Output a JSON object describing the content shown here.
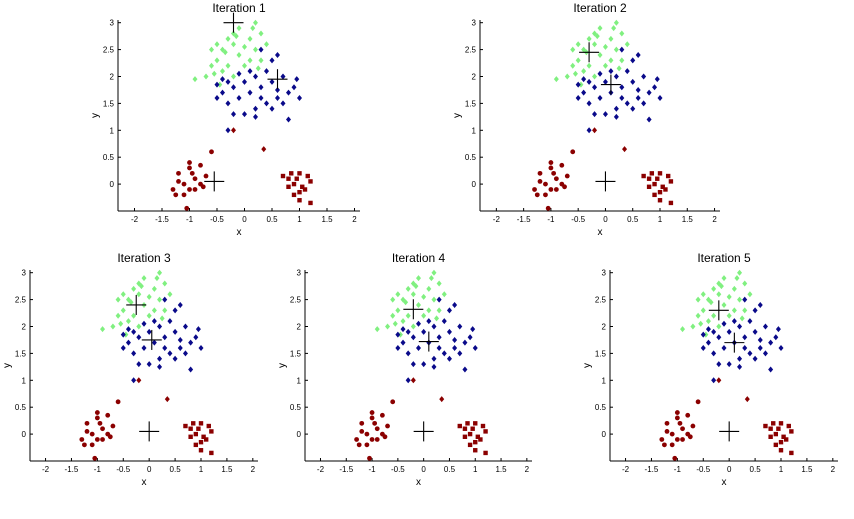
{
  "figure": {
    "description_free": true
  },
  "colors": {
    "cluster_light_green": "#80f080",
    "cluster_dark_blue": "#0a0a8a",
    "cluster_dark_red": "#8b0000",
    "centroid_marker": "#000000",
    "axes": "#000000"
  },
  "chart_data": [
    {
      "type": "scatter",
      "title": "Iteration 1",
      "xlabel": "x",
      "ylabel": "y",
      "xlim": [
        -2.3,
        2.1
      ],
      "ylim": [
        -0.5,
        3.05
      ],
      "xticks": [
        -2,
        -1.5,
        -1,
        -0.5,
        0,
        0.5,
        1,
        1.5,
        2
      ],
      "yticks": [
        0,
        0.5,
        1,
        1.5,
        2,
        2.5,
        3
      ],
      "centroids": [
        {
          "x": -0.2,
          "y": 3.0
        },
        {
          "x": 0.6,
          "y": 1.95
        },
        {
          "x": -0.55,
          "y": 0.05
        }
      ],
      "series_assignment": "iter1"
    },
    {
      "type": "scatter",
      "title": "Iteration 2",
      "xlabel": "x",
      "ylabel": "y",
      "xlim": [
        -2.3,
        2.1
      ],
      "ylim": [
        -0.5,
        3.05
      ],
      "xticks": [
        -2,
        -1.5,
        -1,
        -0.5,
        0,
        0.5,
        1,
        1.5,
        2
      ],
      "yticks": [
        0,
        0.5,
        1,
        1.5,
        2,
        2.5,
        3
      ],
      "centroids": [
        {
          "x": -0.3,
          "y": 2.45
        },
        {
          "x": 0.1,
          "y": 1.85
        },
        {
          "x": 0.0,
          "y": 0.05
        }
      ],
      "series_assignment": "iter2"
    },
    {
      "type": "scatter",
      "title": "Iteration 3",
      "xlabel": "x",
      "ylabel": "y",
      "xlim": [
        -2.3,
        2.1
      ],
      "ylim": [
        -0.5,
        3.05
      ],
      "xticks": [
        -2,
        -1.5,
        -1,
        -0.5,
        0,
        0.5,
        1,
        1.5,
        2
      ],
      "yticks": [
        0,
        0.5,
        1,
        1.5,
        2,
        2.5,
        3
      ],
      "centroids": [
        {
          "x": -0.25,
          "y": 2.4
        },
        {
          "x": 0.05,
          "y": 1.75
        },
        {
          "x": 0.0,
          "y": 0.05
        }
      ],
      "series_assignment": "final"
    },
    {
      "type": "scatter",
      "title": "Iteration 4",
      "xlabel": "x",
      "ylabel": "y",
      "xlim": [
        -2.3,
        2.1
      ],
      "ylim": [
        -0.5,
        3.05
      ],
      "xticks": [
        -2,
        -1.5,
        -1,
        -0.5,
        0,
        0.5,
        1,
        1.5,
        2
      ],
      "yticks": [
        0,
        0.5,
        1,
        1.5,
        2,
        2.5,
        3
      ],
      "centroids": [
        {
          "x": -0.2,
          "y": 2.32
        },
        {
          "x": 0.1,
          "y": 1.72
        },
        {
          "x": 0.0,
          "y": 0.05
        }
      ],
      "series_assignment": "final"
    },
    {
      "type": "scatter",
      "title": "Iteration 5",
      "xlabel": "x",
      "ylabel": "y",
      "xlim": [
        -2.3,
        2.1
      ],
      "ylim": [
        -0.5,
        3.05
      ],
      "xticks": [
        -2,
        -1.5,
        -1,
        -0.5,
        0,
        0.5,
        1,
        1.5,
        2
      ],
      "yticks": [
        0,
        0.5,
        1,
        1.5,
        2,
        2.5,
        3
      ],
      "centroids": [
        {
          "x": -0.2,
          "y": 2.3
        },
        {
          "x": 0.1,
          "y": 1.7
        },
        {
          "x": 0.0,
          "y": 0.05
        }
      ],
      "series_assignment": "final"
    }
  ],
  "points": {
    "light_cluster": [
      [
        -0.4,
        2.5
      ],
      [
        -0.3,
        2.7
      ],
      [
        -0.2,
        2.8
      ],
      [
        -0.1,
        2.9
      ],
      [
        0.2,
        3.0
      ],
      [
        -0.5,
        2.3
      ],
      [
        -0.6,
        2.2
      ],
      [
        -0.4,
        2.1
      ],
      [
        -0.2,
        2.6
      ],
      [
        0.1,
        2.7
      ],
      [
        0.2,
        2.5
      ],
      [
        0.3,
        2.3
      ],
      [
        -0.5,
        2.6
      ],
      [
        -0.1,
        2.4
      ],
      [
        0.0,
        2.2
      ],
      [
        -0.3,
        2.2
      ],
      [
        -0.6,
        2.5
      ],
      [
        -0.2,
        2.0
      ],
      [
        0.4,
        2.6
      ],
      [
        0.3,
        2.8
      ],
      [
        -0.9,
        1.95
      ],
      [
        -0.45,
        1.85
      ],
      [
        0.0,
        2.55
      ],
      [
        -0.7,
        2.0
      ],
      [
        0.1,
        2.3
      ],
      [
        -0.35,
        2.45
      ],
      [
        0.15,
        2.9
      ],
      [
        -0.55,
        2.05
      ],
      [
        0.25,
        2.15
      ],
      [
        -0.15,
        2.75
      ]
    ],
    "mid_cluster": [
      [
        0.3,
        2.5
      ],
      [
        0.5,
        2.3
      ],
      [
        0.6,
        2.4
      ],
      [
        0.4,
        2.1
      ],
      [
        0.2,
        2.0
      ],
      [
        0.0,
        1.9
      ],
      [
        -0.2,
        1.8
      ],
      [
        -0.4,
        1.7
      ],
      [
        -0.5,
        1.6
      ],
      [
        -0.3,
        1.5
      ],
      [
        0.1,
        1.7
      ],
      [
        0.3,
        1.8
      ],
      [
        0.5,
        1.9
      ],
      [
        0.7,
        2.0
      ],
      [
        0.8,
        1.7
      ],
      [
        0.6,
        1.6
      ],
      [
        0.4,
        1.5
      ],
      [
        0.2,
        1.4
      ],
      [
        -0.1,
        1.6
      ],
      [
        -0.3,
        1.9
      ],
      [
        0.9,
        1.8
      ],
      [
        1.0,
        1.6
      ],
      [
        0.8,
        1.2
      ],
      [
        0.0,
        1.3
      ],
      [
        -0.2,
        1.3
      ],
      [
        0.5,
        1.4
      ],
      [
        -0.4,
        1.95
      ],
      [
        0.1,
        2.1
      ],
      [
        0.3,
        1.6
      ],
      [
        0.7,
        1.5
      ],
      [
        -0.3,
        1.0
      ],
      [
        0.2,
        1.25
      ],
      [
        -0.5,
        1.85
      ],
      [
        0.6,
        1.75
      ],
      [
        0.95,
        1.95
      ],
      [
        -0.1,
        2.05
      ]
    ],
    "red_left": [
      [
        -1.2,
        0.2
      ],
      [
        -1.1,
        0.0
      ],
      [
        -1.0,
        -0.1
      ],
      [
        -0.9,
        0.1
      ],
      [
        -1.3,
        -0.1
      ],
      [
        -1.0,
        0.3
      ],
      [
        -0.8,
        0.0
      ],
      [
        -1.1,
        -0.2
      ],
      [
        -0.9,
        -0.1
      ],
      [
        -1.2,
        0.05
      ],
      [
        -0.7,
        0.15
      ],
      [
        -0.8,
        0.35
      ],
      [
        -1.0,
        0.4
      ],
      [
        -0.6,
        0.6
      ],
      [
        -1.05,
        -0.45
      ],
      [
        -1.25,
        -0.2
      ],
      [
        -0.95,
        0.2
      ],
      [
        -0.75,
        -0.05
      ]
    ],
    "red_right": [
      [
        0.8,
        0.1
      ],
      [
        0.9,
        0.0
      ],
      [
        1.0,
        0.2
      ],
      [
        1.1,
        -0.1
      ],
      [
        0.9,
        -0.2
      ],
      [
        1.0,
        -0.3
      ],
      [
        0.85,
        0.2
      ],
      [
        1.2,
        0.05
      ],
      [
        0.95,
        0.1
      ],
      [
        1.05,
        -0.05
      ],
      [
        0.8,
        -0.05
      ],
      [
        1.15,
        0.15
      ],
      [
        1.0,
        -0.15
      ],
      [
        1.2,
        -0.35
      ],
      [
        0.7,
        0.15
      ]
    ],
    "outliers": [
      [
        -0.2,
        1.0
      ],
      [
        0.35,
        0.65
      ]
    ]
  }
}
